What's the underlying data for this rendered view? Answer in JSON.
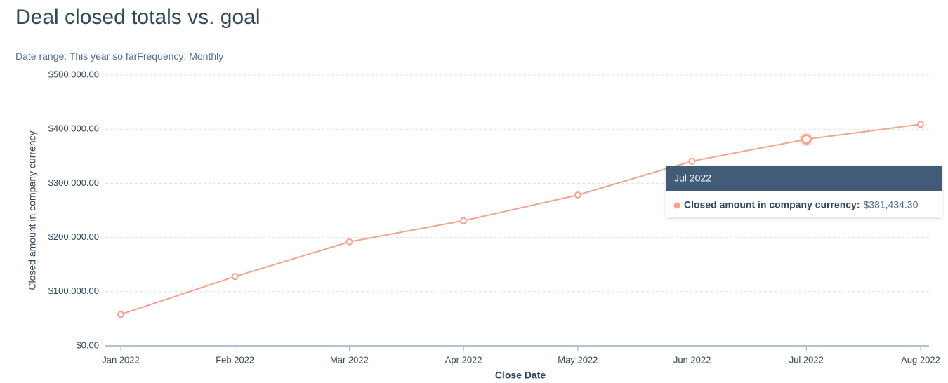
{
  "chart_data": {
    "type": "line",
    "title": "Deal closed totals vs. goal",
    "filters": [
      "Date range: This year so far",
      "Frequency: Monthly"
    ],
    "xlabel": "Close Date",
    "ylabel": "Closed amount in company currency",
    "categories": [
      "Jan 2022",
      "Feb 2022",
      "Mar 2022",
      "Apr 2022",
      "May 2022",
      "Jun 2022",
      "Jul 2022",
      "Aug 2022"
    ],
    "series": [
      {
        "name": "Closed amount in company currency",
        "color": "#f2a58e",
        "values": [
          58000,
          128000,
          192000,
          231000,
          278500,
          341000,
          381434.3,
          409000
        ],
        "value_labels": [
          null,
          null,
          null,
          null,
          null,
          null,
          "$381,434.30",
          null
        ]
      }
    ],
    "tooltip": {
      "label": "Closed amount in company currency:"
    },
    "ylim": [
      0,
      500000
    ],
    "yticks": [
      {
        "value": 0,
        "label": "$0.00"
      },
      {
        "value": 100000,
        "label": "$100,000.00"
      },
      {
        "value": 200000,
        "label": "$200,000.00"
      },
      {
        "value": 300000,
        "label": "$300,000.00"
      },
      {
        "value": 400000,
        "label": "$400,000.00"
      },
      {
        "value": 500000,
        "label": "$500,000.00"
      }
    ],
    "grid": true
  }
}
